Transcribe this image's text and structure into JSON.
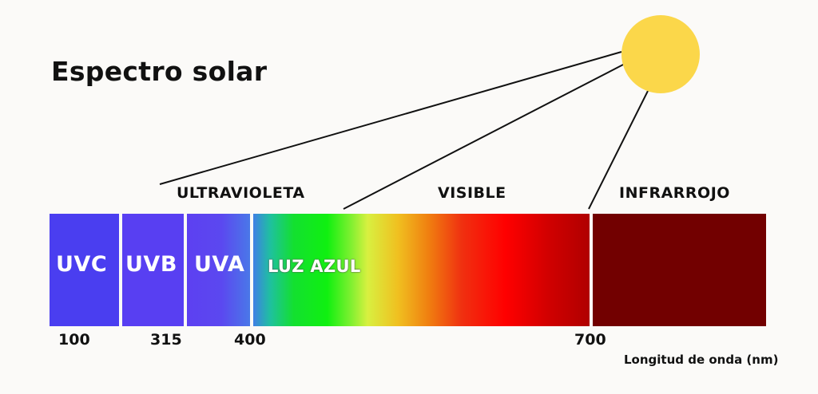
{
  "title": "Espectro solar",
  "regions": {
    "ultraviolet": "ULTRAVIOLETA",
    "visible": "VISIBLE",
    "infrared": "INFRARROJO"
  },
  "bands": {
    "uvc": "UVC",
    "uvb": "UVB",
    "uva": "UVA",
    "blue_light": "LUZ AZUL"
  },
  "ticks": [
    "100",
    "315",
    "400",
    "700"
  ],
  "axis_label": "Longitud de onda (nm)",
  "colors": {
    "sun": "#fbd74a",
    "uvc": "#4a3df0",
    "uvb": "#5a3ff2",
    "uva": "#5f42f0",
    "infrared": "#720000",
    "separator": "#ffffff",
    "lines": "#111111"
  }
}
